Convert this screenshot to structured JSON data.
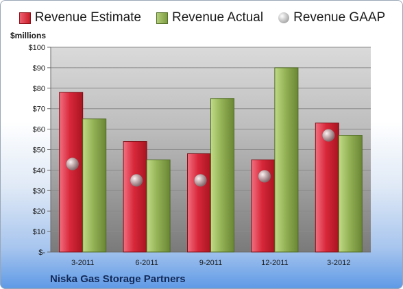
{
  "legend": {
    "estimate": "Revenue Estimate",
    "actual": "Revenue Actual",
    "gaap": "Revenue GAAP"
  },
  "unit_label": "$millions",
  "company": "Niska Gas Storage Partners",
  "colors": {
    "estimate": "#c8202c",
    "actual": "#8aa84c",
    "gaap": "#a8a8a8"
  },
  "chart_data": {
    "type": "bar",
    "categories": [
      "3-2011",
      "6-2011",
      "9-2011",
      "12-2011",
      "3-2012"
    ],
    "series": [
      {
        "name": "Revenue Estimate",
        "values": [
          78,
          54,
          48,
          45,
          63
        ]
      },
      {
        "name": "Revenue Actual",
        "values": [
          65,
          45,
          75,
          90,
          57
        ]
      },
      {
        "name": "Revenue GAAP",
        "values": [
          43,
          35,
          35,
          37,
          57
        ]
      }
    ],
    "ylabel": "$millions",
    "ylim": [
      0,
      100
    ],
    "yticks": [
      "$-",
      "$10",
      "$20",
      "$30",
      "$40",
      "$50",
      "$60",
      "$70",
      "$80",
      "$90",
      "$100"
    ],
    "grid": true,
    "legend_position": "top"
  }
}
